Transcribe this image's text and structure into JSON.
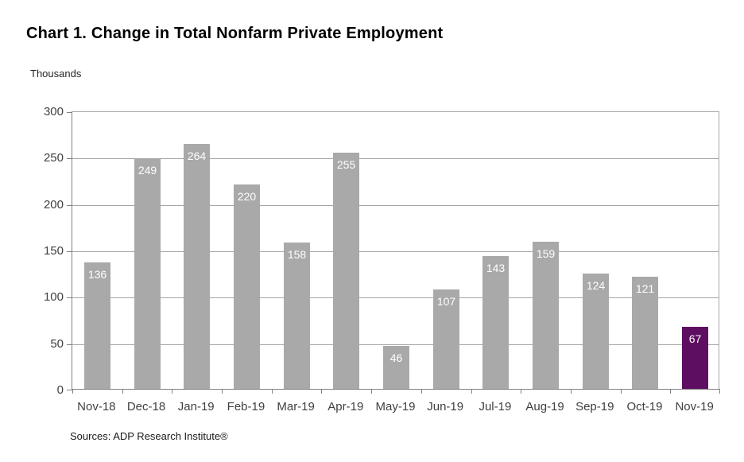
{
  "title": "Chart 1. Change in Total Nonfarm Private Employment",
  "units_label": "Thousands",
  "source": "Sources: ADP Research Institute®",
  "colors": {
    "bar_default": "#a9a9a9",
    "bar_highlight": "#5e0e60",
    "bar_label": "#ffffff",
    "gridline": "#a6a6a6",
    "axis": "#808080",
    "axis_text": "#404040"
  },
  "chart_data": {
    "type": "bar",
    "title": "Chart 1. Change in Total Nonfarm Private Employment",
    "ylabel": "Thousands",
    "xlabel": "",
    "categories": [
      "Nov-18",
      "Dec-18",
      "Jan-19",
      "Feb-19",
      "Mar-19",
      "Apr-19",
      "May-19",
      "Jun-19",
      "Jul-19",
      "Aug-19",
      "Sep-19",
      "Oct-19",
      "Nov-19"
    ],
    "values": [
      136,
      249,
      264,
      220,
      158,
      255,
      46,
      107,
      143,
      159,
      124,
      121,
      67
    ],
    "highlight_index": 12,
    "ylim": [
      0,
      300
    ],
    "yticks": [
      0,
      50,
      100,
      150,
      200,
      250,
      300
    ],
    "grid": true,
    "legend": "none",
    "data_labels": "inside-end"
  }
}
